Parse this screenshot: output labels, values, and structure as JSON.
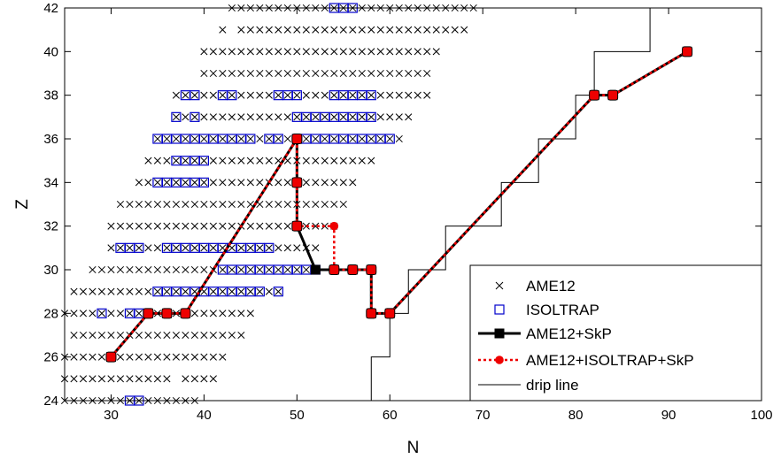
{
  "chart_data": {
    "type": "scatter",
    "xlabel": "N",
    "ylabel": "Z",
    "xlim": [
      25,
      100
    ],
    "ylim": [
      24,
      42
    ],
    "x_ticks": [
      30,
      40,
      50,
      60,
      70,
      80,
      90,
      100
    ],
    "y_ticks": [
      24,
      26,
      28,
      30,
      32,
      34,
      36,
      38,
      40,
      42
    ],
    "grid": false,
    "legend_position": "bottom-right",
    "ame12_ranges": [
      {
        "z": 24,
        "n": [
          [
            25,
            39
          ]
        ]
      },
      {
        "z": 25,
        "n": [
          [
            25,
            36
          ],
          [
            38,
            41
          ]
        ]
      },
      {
        "z": 26,
        "n": [
          [
            25,
            42
          ]
        ]
      },
      {
        "z": 27,
        "n": [
          [
            26,
            44
          ]
        ]
      },
      {
        "z": 28,
        "n": [
          [
            25,
            45
          ]
        ]
      },
      {
        "z": 29,
        "n": [
          [
            26,
            48
          ]
        ]
      },
      {
        "z": 30,
        "n": [
          [
            28,
            51
          ]
        ]
      },
      {
        "z": 31,
        "n": [
          [
            30,
            52
          ]
        ]
      },
      {
        "z": 32,
        "n": [
          [
            30,
            54
          ]
        ]
      },
      {
        "z": 33,
        "n": [
          [
            31,
            55
          ]
        ]
      },
      {
        "z": 34,
        "n": [
          [
            33,
            56
          ]
        ]
      },
      {
        "z": 35,
        "n": [
          [
            34,
            58
          ]
        ]
      },
      {
        "z": 36,
        "n": [
          [
            35,
            61
          ]
        ]
      },
      {
        "z": 37,
        "n": [
          [
            37,
            62
          ]
        ]
      },
      {
        "z": 38,
        "n": [
          [
            37,
            64
          ]
        ]
      },
      {
        "z": 39,
        "n": [
          [
            40,
            64
          ]
        ]
      },
      {
        "z": 40,
        "n": [
          [
            40,
            65
          ]
        ]
      },
      {
        "z": 41,
        "n": [
          [
            42,
            42
          ],
          [
            44,
            68
          ]
        ]
      },
      {
        "z": 42,
        "n": [
          [
            43,
            69
          ]
        ]
      }
    ],
    "isoltrap_ranges": [
      {
        "z": 24,
        "n": [
          [
            32,
            33
          ]
        ]
      },
      {
        "z": 28,
        "n": [
          [
            29,
            29
          ],
          [
            32,
            33
          ]
        ]
      },
      {
        "z": 29,
        "n": [
          [
            35,
            46
          ],
          [
            48,
            48
          ]
        ]
      },
      {
        "z": 30,
        "n": [
          [
            42,
            52
          ]
        ]
      },
      {
        "z": 31,
        "n": [
          [
            31,
            33
          ],
          [
            36,
            47
          ]
        ]
      },
      {
        "z": 34,
        "n": [
          [
            35,
            40
          ]
        ]
      },
      {
        "z": 35,
        "n": [
          [
            37,
            40
          ]
        ]
      },
      {
        "z": 36,
        "n": [
          [
            35,
            45
          ],
          [
            47,
            48
          ],
          [
            50,
            50
          ],
          [
            51,
            60
          ]
        ]
      },
      {
        "z": 37,
        "n": [
          [
            37,
            37
          ],
          [
            39,
            39
          ],
          [
            50,
            58
          ]
        ]
      },
      {
        "z": 38,
        "n": [
          [
            38,
            39
          ],
          [
            42,
            43
          ],
          [
            48,
            50
          ],
          [
            54,
            58
          ]
        ]
      },
      {
        "z": 42,
        "n": [
          [
            54,
            56
          ]
        ]
      }
    ],
    "series": [
      {
        "name": "AME12",
        "marker": "x",
        "color": "#000000"
      },
      {
        "name": "ISOLTRAP",
        "marker": "open-square",
        "color": "#0000cc"
      },
      {
        "name": "AME12+SkP",
        "marker": "filled-square",
        "line": "solid",
        "color": "#000000",
        "points": [
          [
            30,
            26
          ],
          [
            34,
            28
          ],
          [
            36,
            28
          ],
          [
            38,
            28
          ],
          [
            50,
            36
          ],
          [
            50,
            34
          ],
          [
            50,
            32
          ],
          [
            52,
            30
          ],
          [
            54,
            30
          ],
          [
            56,
            30
          ],
          [
            58,
            30
          ],
          [
            58,
            28
          ],
          [
            60,
            28
          ],
          [
            82,
            38
          ],
          [
            84,
            38
          ],
          [
            92,
            40
          ]
        ]
      },
      {
        "name": "AME12+ISOLTRAP+SkP",
        "marker": "filled-circle",
        "line": "dotted",
        "color": "#ee0000",
        "points": [
          [
            30,
            26
          ],
          [
            34,
            28
          ],
          [
            36,
            28
          ],
          [
            38,
            28
          ],
          [
            50,
            36
          ],
          [
            50,
            34
          ],
          [
            50,
            32
          ],
          [
            54,
            32
          ],
          [
            54,
            30
          ],
          [
            56,
            30
          ],
          [
            58,
            30
          ],
          [
            58,
            28
          ],
          [
            60,
            28
          ],
          [
            82,
            38
          ],
          [
            84,
            38
          ],
          [
            92,
            40
          ]
        ]
      },
      {
        "name": "drip line",
        "line": "solid-thin",
        "color": "#000000",
        "points": [
          [
            58,
            24
          ],
          [
            58,
            26
          ],
          [
            60,
            26
          ],
          [
            60,
            28
          ],
          [
            62,
            28
          ],
          [
            62,
            30
          ],
          [
            66,
            30
          ],
          [
            66,
            32
          ],
          [
            72,
            32
          ],
          [
            72,
            34
          ],
          [
            76,
            34
          ],
          [
            76,
            36
          ],
          [
            80,
            36
          ],
          [
            80,
            38
          ],
          [
            82,
            38
          ],
          [
            82,
            40
          ],
          [
            88,
            40
          ],
          [
            88,
            42
          ],
          [
            90,
            42
          ]
        ]
      }
    ]
  }
}
